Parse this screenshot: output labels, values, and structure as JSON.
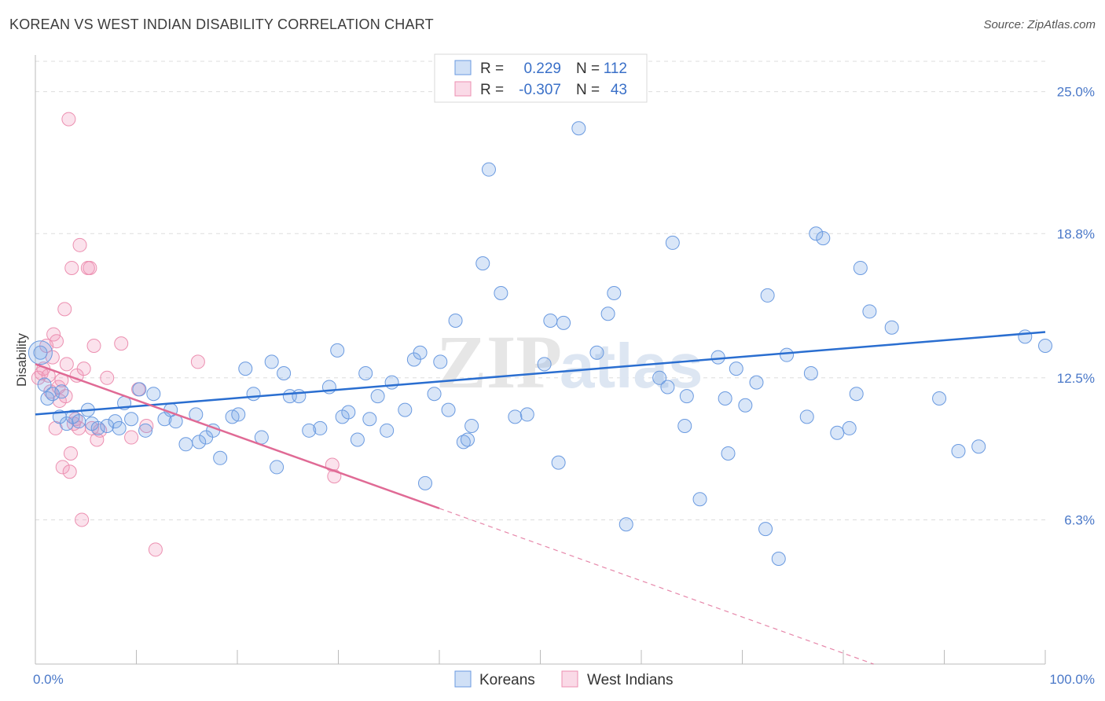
{
  "title": "KOREAN VS WEST INDIAN DISABILITY CORRELATION CHART",
  "source": "Source: ZipAtlas.com",
  "watermark": "ZIPatlas",
  "colors": {
    "korean_fill": "rgba(120,165,230,0.28)",
    "korean_stroke": "#6a9ae0",
    "korean_line": "#2a6ed0",
    "westindian_fill": "rgba(240,150,185,0.28)",
    "westindian_stroke": "#ec8fb0",
    "westindian_line": "#e06a95",
    "tick_label": "#4a78c8",
    "grid": "#dddddd"
  },
  "stats": [
    {
      "r_label": "R =",
      "r_value": "0.229",
      "n_label": "N =",
      "n_value": "112"
    },
    {
      "r_label": "R =",
      "r_value": "-0.307",
      "n_label": "N =",
      "n_value": "43"
    }
  ],
  "chart_data": {
    "type": "scatter",
    "title": "KOREAN VS WEST INDIAN DISABILITY CORRELATION CHART",
    "xlabel": "",
    "ylabel": "Disability",
    "xlim": [
      0,
      100
    ],
    "ylim": [
      0,
      26.6
    ],
    "x_tick_labels": [
      "0.0%",
      "100.0%"
    ],
    "y_ticks": [
      6.3,
      12.5,
      18.8,
      25.0
    ],
    "y_tick_labels": [
      "6.3%",
      "12.5%",
      "18.8%",
      "25.0%"
    ],
    "grid": "horizontal dashed",
    "legend_position": "bottom-center",
    "series": [
      {
        "name": "Koreans",
        "trendline": {
          "x": [
            0,
            100
          ],
          "y": [
            10.9,
            14.5
          ]
        },
        "points": [
          [
            0.5,
            13.6
          ],
          [
            0.9,
            12.2
          ],
          [
            1.2,
            11.6
          ],
          [
            1.7,
            11.8
          ],
          [
            2.4,
            10.8
          ],
          [
            2.6,
            11.9
          ],
          [
            3.1,
            10.5
          ],
          [
            3.7,
            10.8
          ],
          [
            4.3,
            10.6
          ],
          [
            5.2,
            11.1
          ],
          [
            5.6,
            10.5
          ],
          [
            6.2,
            10.3
          ],
          [
            7.1,
            10.4
          ],
          [
            7.9,
            10.6
          ],
          [
            8.3,
            10.3
          ],
          [
            8.8,
            11.4
          ],
          [
            9.5,
            10.7
          ],
          [
            10.3,
            12.0
          ],
          [
            10.9,
            10.2
          ],
          [
            11.7,
            11.8
          ],
          [
            12.8,
            10.7
          ],
          [
            13.4,
            11.1
          ],
          [
            13.9,
            10.6
          ],
          [
            14.9,
            9.6
          ],
          [
            15.9,
            10.9
          ],
          [
            16.2,
            9.7
          ],
          [
            16.9,
            9.9
          ],
          [
            17.6,
            10.2
          ],
          [
            18.3,
            9.0
          ],
          [
            19.5,
            10.8
          ],
          [
            20.1,
            10.9
          ],
          [
            20.8,
            12.9
          ],
          [
            21.6,
            11.8
          ],
          [
            22.4,
            9.9
          ],
          [
            23.4,
            13.2
          ],
          [
            23.9,
            8.6
          ],
          [
            24.6,
            12.7
          ],
          [
            25.2,
            11.7
          ],
          [
            26.1,
            11.7
          ],
          [
            27.1,
            10.2
          ],
          [
            28.2,
            10.3
          ],
          [
            29.1,
            12.1
          ],
          [
            29.9,
            13.7
          ],
          [
            30.4,
            10.8
          ],
          [
            31.0,
            11.0
          ],
          [
            31.9,
            9.8
          ],
          [
            32.7,
            12.7
          ],
          [
            33.1,
            10.7
          ],
          [
            33.9,
            11.7
          ],
          [
            34.8,
            10.2
          ],
          [
            35.3,
            12.3
          ],
          [
            36.6,
            11.1
          ],
          [
            37.5,
            13.3
          ],
          [
            38.1,
            13.6
          ],
          [
            38.6,
            7.9
          ],
          [
            39.5,
            11.8
          ],
          [
            40.1,
            13.2
          ],
          [
            40.9,
            11.1
          ],
          [
            41.6,
            15.0
          ],
          [
            42.4,
            9.7
          ],
          [
            42.8,
            9.8
          ],
          [
            43.2,
            10.4
          ],
          [
            44.3,
            17.5
          ],
          [
            44.9,
            21.6
          ],
          [
            46.1,
            16.2
          ],
          [
            47.5,
            10.8
          ],
          [
            48.7,
            10.9
          ],
          [
            50.4,
            13.1
          ],
          [
            51.0,
            15.0
          ],
          [
            51.8,
            8.8
          ],
          [
            52.3,
            14.9
          ],
          [
            53.8,
            23.4
          ],
          [
            55.6,
            13.6
          ],
          [
            56.7,
            15.3
          ],
          [
            57.3,
            16.2
          ],
          [
            58.5,
            6.1
          ],
          [
            61.8,
            12.5
          ],
          [
            62.6,
            12.1
          ],
          [
            63.1,
            18.4
          ],
          [
            64.3,
            10.4
          ],
          [
            64.5,
            11.7
          ],
          [
            65.8,
            7.2
          ],
          [
            67.6,
            13.4
          ],
          [
            68.3,
            11.6
          ],
          [
            68.6,
            9.2
          ],
          [
            69.4,
            12.9
          ],
          [
            70.3,
            11.3
          ],
          [
            71.4,
            12.3
          ],
          [
            72.3,
            5.9
          ],
          [
            72.5,
            16.1
          ],
          [
            73.6,
            4.6
          ],
          [
            74.4,
            13.5
          ],
          [
            76.4,
            10.8
          ],
          [
            76.8,
            12.7
          ],
          [
            77.3,
            18.8
          ],
          [
            78.0,
            18.6
          ],
          [
            79.4,
            10.1
          ],
          [
            80.6,
            10.3
          ],
          [
            81.3,
            11.8
          ],
          [
            81.7,
            17.3
          ],
          [
            82.6,
            15.4
          ],
          [
            84.8,
            14.7
          ],
          [
            89.5,
            11.6
          ],
          [
            91.4,
            9.3
          ],
          [
            93.4,
            9.5
          ],
          [
            98.0,
            14.3
          ],
          [
            100.0,
            13.9
          ]
        ]
      },
      {
        "name": "West Indians",
        "trendline": {
          "x": [
            0,
            40
          ],
          "y": [
            13.1,
            6.8
          ]
        },
        "trendline_dashed": {
          "x": [
            40,
            83
          ],
          "y": [
            6.8,
            0
          ]
        },
        "points": [
          [
            0.3,
            12.5
          ],
          [
            0.6,
            12.7
          ],
          [
            0.8,
            12.9
          ],
          [
            1.1,
            13.9
          ],
          [
            1.3,
            12.6
          ],
          [
            1.5,
            11.9
          ],
          [
            1.7,
            13.4
          ],
          [
            1.8,
            14.4
          ],
          [
            2.0,
            10.3
          ],
          [
            2.1,
            14.1
          ],
          [
            2.3,
            12.1
          ],
          [
            2.4,
            11.5
          ],
          [
            2.6,
            12.4
          ],
          [
            2.7,
            8.6
          ],
          [
            2.9,
            15.5
          ],
          [
            3.0,
            11.7
          ],
          [
            3.1,
            13.1
          ],
          [
            3.3,
            23.8
          ],
          [
            3.4,
            8.4
          ],
          [
            3.5,
            9.2
          ],
          [
            3.6,
            17.3
          ],
          [
            3.8,
            10.5
          ],
          [
            4.0,
            10.7
          ],
          [
            4.1,
            12.6
          ],
          [
            4.3,
            10.3
          ],
          [
            4.4,
            18.3
          ],
          [
            4.6,
            6.3
          ],
          [
            4.8,
            12.9
          ],
          [
            5.2,
            17.3
          ],
          [
            5.4,
            17.3
          ],
          [
            5.6,
            10.3
          ],
          [
            5.8,
            13.9
          ],
          [
            6.1,
            9.8
          ],
          [
            6.4,
            10.2
          ],
          [
            7.1,
            12.5
          ],
          [
            8.5,
            14.0
          ],
          [
            9.5,
            9.9
          ],
          [
            10.2,
            12.0
          ],
          [
            11.0,
            10.4
          ],
          [
            11.9,
            5.0
          ],
          [
            16.1,
            13.2
          ],
          [
            29.4,
            8.7
          ],
          [
            29.6,
            8.2
          ]
        ]
      }
    ]
  }
}
